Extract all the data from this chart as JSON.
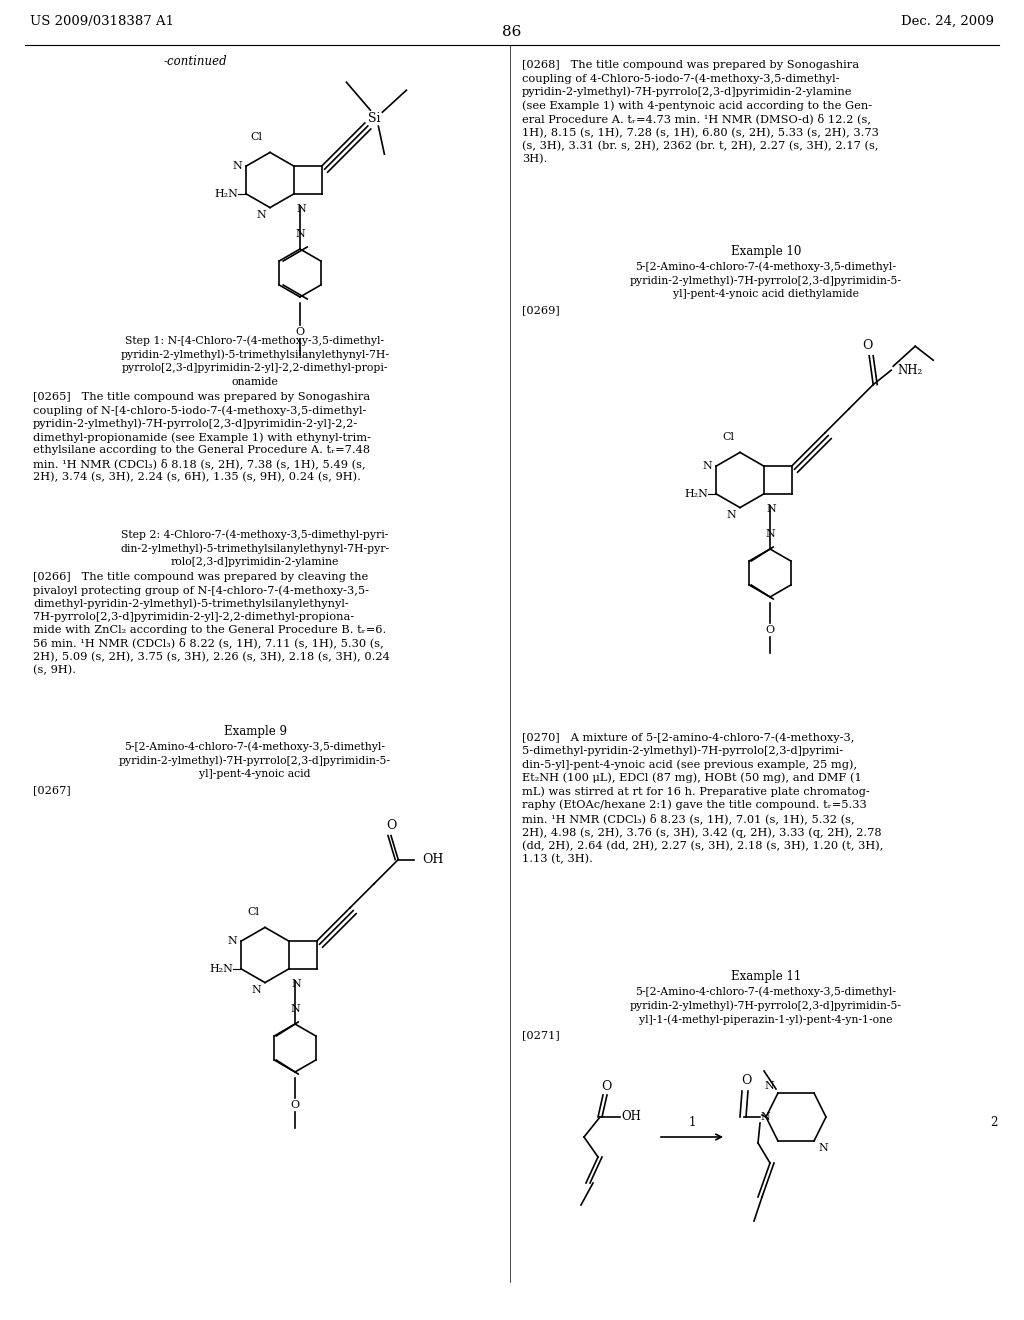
{
  "page_number": "86",
  "patent_number": "US 2009/0318387 A1",
  "patent_date": "Dec. 24, 2009",
  "background_color": "#ffffff",
  "continued_text": "-continued",
  "body_fontsize": 8.2,
  "header_fontsize": 9.5,
  "example_fontsize": 8.5,
  "step_fontsize": 7.8,
  "page_num_fontsize": 11
}
